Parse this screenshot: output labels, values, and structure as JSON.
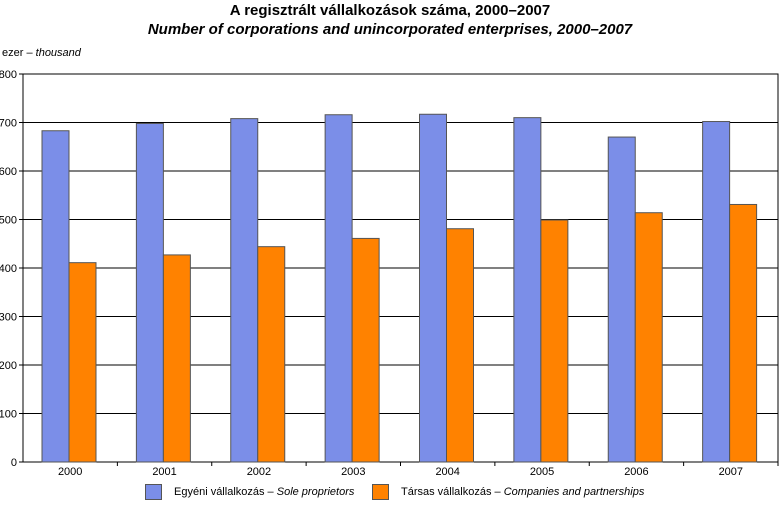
{
  "title_hu": "A regisztrált vállalkozások száma, 2000–2007",
  "title_en": "Number of corporations and unincorporated enterprises, 2000–2007",
  "unit_hu": "ezer – ",
  "unit_en": "thousand",
  "legend": [
    {
      "hu": "Egyéni vállalkozás – ",
      "en": "Sole proprietors"
    },
    {
      "hu": "Társas vállalkozás – ",
      "en": "Companies and partnerships"
    }
  ],
  "colors": {
    "sole": "#7b8ee8",
    "companies": "#ff8200",
    "grid": "#000000"
  },
  "chart_data": {
    "type": "bar",
    "categories": [
      "2000",
      "2001",
      "2002",
      "2003",
      "2004",
      "2005",
      "2006",
      "2007"
    ],
    "series": [
      {
        "name": "Egyéni vállalkozás – Sole proprietors",
        "values": [
          683,
          698,
          708,
          716,
          717,
          710,
          670,
          702
        ]
      },
      {
        "name": "Társas vállalkozás – Companies and partnerships",
        "values": [
          411,
          427,
          444,
          461,
          481,
          499,
          514,
          531
        ]
      }
    ],
    "ylim": [
      0,
      800
    ],
    "yticks": [
      "0",
      "100",
      "200",
      "300",
      "400",
      "500",
      "600",
      "700",
      "800"
    ],
    "grid": true,
    "legend_position": "bottom"
  }
}
